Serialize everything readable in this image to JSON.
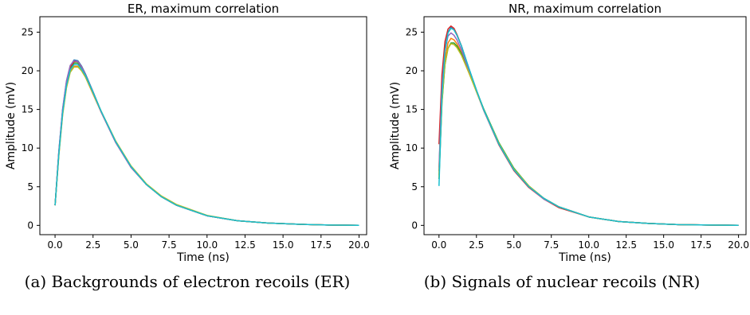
{
  "chart_data": [
    {
      "type": "line",
      "title": "ER, maximum correlation",
      "xlabel": "Time (ns)",
      "ylabel": "Amplitude (mV)",
      "xlim": [
        -1.0,
        20.5
      ],
      "ylim": [
        -1.2,
        27.0
      ],
      "xticks": [
        "0.0",
        "2.5",
        "5.0",
        "7.5",
        "10.0",
        "12.5",
        "15.0",
        "17.5",
        "20.0"
      ],
      "yticks": [
        "0",
        "5",
        "10",
        "15",
        "20",
        "25"
      ],
      "grid": false,
      "legend": "none",
      "caption": "(a) Backgrounds of electron recoils (ER)",
      "series": [
        {
          "color": "#1f77b4",
          "x": [
            0,
            0.25,
            0.5,
            0.75,
            1,
            1.25,
            1.5,
            1.75,
            2,
            2.5,
            3,
            4,
            5,
            6,
            7,
            8,
            10,
            12,
            14,
            16,
            18,
            20
          ],
          "y": [
            2.6,
            9.5,
            15.0,
            18.6,
            20.6,
            21.4,
            21.3,
            20.6,
            19.6,
            17.3,
            14.9,
            10.8,
            7.6,
            5.3,
            3.7,
            2.6,
            1.25,
            0.6,
            0.3,
            0.15,
            0.05,
            0.0
          ]
        },
        {
          "color": "#ff7f0e",
          "x": [
            0,
            0.25,
            0.5,
            0.75,
            1,
            1.25,
            1.5,
            1.75,
            2,
            2.5,
            3,
            4,
            5,
            6,
            7,
            8,
            10,
            12,
            14,
            16,
            18,
            20
          ],
          "y": [
            2.6,
            9.1,
            14.4,
            17.9,
            19.9,
            20.6,
            20.6,
            20.0,
            19.2,
            17.0,
            14.8,
            10.8,
            7.6,
            5.3,
            3.7,
            2.6,
            1.25,
            0.6,
            0.3,
            0.15,
            0.05,
            0.0
          ]
        },
        {
          "color": "#2ca02c",
          "x": [
            0,
            0.25,
            0.5,
            0.75,
            1,
            1.25,
            1.5,
            1.75,
            2,
            2.5,
            3,
            4,
            5,
            6,
            7,
            8,
            10,
            12,
            14,
            16,
            18,
            20
          ],
          "y": [
            2.6,
            9.3,
            14.8,
            18.3,
            20.3,
            21.0,
            21.0,
            20.4,
            19.5,
            17.2,
            14.9,
            10.8,
            7.6,
            5.3,
            3.7,
            2.6,
            1.25,
            0.6,
            0.3,
            0.15,
            0.05,
            0.0
          ]
        },
        {
          "color": "#d62728",
          "x": [
            0,
            0.25,
            0.5,
            0.75,
            1,
            1.25,
            1.5,
            1.75,
            2,
            2.5,
            3,
            4,
            5,
            6,
            7,
            8,
            10,
            12,
            14,
            16,
            18,
            20
          ],
          "y": [
            2.6,
            9.4,
            14.9,
            18.5,
            20.5,
            21.2,
            21.2,
            20.5,
            19.5,
            17.2,
            14.8,
            10.7,
            7.5,
            5.3,
            3.7,
            2.6,
            1.25,
            0.6,
            0.3,
            0.15,
            0.05,
            0.0
          ]
        },
        {
          "color": "#9467bd",
          "x": [
            0,
            0.25,
            0.5,
            0.75,
            1,
            1.25,
            1.5,
            1.75,
            2,
            2.5,
            3,
            4,
            5,
            6,
            7,
            8,
            10,
            12,
            14,
            16,
            18,
            20
          ],
          "y": [
            2.6,
            9.6,
            15.1,
            18.7,
            20.7,
            21.3,
            21.2,
            20.5,
            19.5,
            17.2,
            14.8,
            10.7,
            7.5,
            5.3,
            3.7,
            2.6,
            1.25,
            0.6,
            0.3,
            0.15,
            0.05,
            0.0
          ]
        },
        {
          "color": "#bcbd22",
          "x": [
            0,
            0.25,
            0.5,
            0.75,
            1,
            1.25,
            1.5,
            1.75,
            2,
            2.5,
            3,
            4,
            5,
            6,
            7,
            8,
            10,
            12,
            14,
            16,
            18,
            20
          ],
          "y": [
            2.6,
            9.0,
            14.3,
            17.8,
            19.8,
            20.5,
            20.5,
            20.0,
            19.2,
            17.1,
            14.9,
            10.9,
            7.7,
            5.4,
            3.8,
            2.7,
            1.3,
            0.6,
            0.3,
            0.15,
            0.05,
            0.0
          ]
        },
        {
          "color": "#17becf",
          "x": [
            0,
            0.25,
            0.5,
            0.75,
            1,
            1.25,
            1.5,
            1.75,
            2,
            2.5,
            3,
            4,
            5,
            6,
            7,
            8,
            10,
            12,
            14,
            16,
            18,
            20
          ],
          "y": [
            2.6,
            9.2,
            14.6,
            18.1,
            20.1,
            20.8,
            20.8,
            20.2,
            19.4,
            17.2,
            14.9,
            10.8,
            7.6,
            5.3,
            3.7,
            2.6,
            1.25,
            0.6,
            0.3,
            0.15,
            0.05,
            0.0
          ]
        }
      ]
    },
    {
      "type": "line",
      "title": "NR, maximum correlation",
      "xlabel": "Time (ns)",
      "ylabel": "Amplitude (mV)",
      "xlim": [
        -1.0,
        20.5
      ],
      "ylim": [
        -1.2,
        27.0
      ],
      "xticks": [
        "0.0",
        "2.5",
        "5.0",
        "7.5",
        "10.0",
        "12.5",
        "15.0",
        "17.5",
        "20.0"
      ],
      "yticks": [
        "0",
        "5",
        "10",
        "15",
        "20",
        "25"
      ],
      "grid": false,
      "legend": "none",
      "caption": "(b) Signals of nuclear recoils (NR)",
      "series": [
        {
          "color": "#1f77b4",
          "x": [
            0,
            0.2,
            0.4,
            0.6,
            0.8,
            1,
            1.2,
            1.5,
            2,
            2.5,
            3,
            4,
            5,
            6,
            7,
            8,
            10,
            12,
            14,
            16,
            18,
            20
          ],
          "y": [
            7.0,
            17.5,
            22.8,
            25.0,
            25.6,
            25.3,
            24.6,
            23.2,
            20.3,
            17.5,
            14.9,
            10.5,
            7.2,
            5.0,
            3.5,
            2.4,
            1.1,
            0.5,
            0.25,
            0.1,
            0.05,
            0.0
          ]
        },
        {
          "color": "#ff7f0e",
          "x": [
            0,
            0.2,
            0.4,
            0.6,
            0.8,
            1,
            1.2,
            1.5,
            2,
            2.5,
            3,
            4,
            5,
            6,
            7,
            8,
            10,
            12,
            14,
            16,
            18,
            20
          ],
          "y": [
            6.5,
            16.5,
            21.5,
            23.6,
            24.2,
            24.0,
            23.5,
            22.4,
            19.8,
            17.3,
            14.9,
            10.6,
            7.3,
            5.1,
            3.5,
            2.4,
            1.1,
            0.5,
            0.25,
            0.1,
            0.05,
            0.0
          ]
        },
        {
          "color": "#2ca02c",
          "x": [
            0,
            0.2,
            0.4,
            0.6,
            0.8,
            1,
            1.2,
            1.5,
            2,
            2.5,
            3,
            4,
            5,
            6,
            7,
            8,
            10,
            12,
            14,
            16,
            18,
            20
          ],
          "y": [
            6.0,
            15.8,
            20.8,
            22.9,
            23.6,
            23.6,
            23.2,
            22.2,
            19.8,
            17.4,
            15.0,
            10.7,
            7.4,
            5.1,
            3.5,
            2.4,
            1.1,
            0.5,
            0.25,
            0.1,
            0.05,
            0.0
          ]
        },
        {
          "color": "#d62728",
          "x": [
            0,
            0.2,
            0.4,
            0.6,
            0.8,
            1,
            1.2,
            1.5,
            2,
            2.5,
            3,
            4,
            5,
            6,
            7,
            8,
            10,
            12,
            14,
            16,
            18,
            20
          ],
          "y": [
            10.5,
            19.5,
            23.8,
            25.4,
            25.8,
            25.5,
            24.7,
            23.2,
            20.2,
            17.4,
            14.8,
            10.4,
            7.1,
            4.9,
            3.4,
            2.3,
            1.1,
            0.5,
            0.25,
            0.1,
            0.05,
            0.0
          ]
        },
        {
          "color": "#9467bd",
          "x": [
            0,
            0.2,
            0.4,
            0.6,
            0.8,
            1,
            1.2,
            1.5,
            2,
            2.5,
            3,
            4,
            5,
            6,
            7,
            8,
            10,
            12,
            14,
            16,
            18,
            20
          ],
          "y": [
            7.5,
            17.8,
            22.6,
            24.5,
            24.9,
            24.6,
            24.0,
            22.7,
            20.0,
            17.3,
            14.8,
            10.5,
            7.2,
            5.0,
            3.4,
            2.4,
            1.1,
            0.5,
            0.25,
            0.1,
            0.05,
            0.0
          ]
        },
        {
          "color": "#bcbd22",
          "x": [
            0,
            0.2,
            0.4,
            0.6,
            0.8,
            1,
            1.2,
            1.5,
            2,
            2.5,
            3,
            4,
            5,
            6,
            7,
            8,
            10,
            12,
            14,
            16,
            18,
            20
          ],
          "y": [
            6.2,
            16.0,
            20.9,
            22.9,
            23.5,
            23.4,
            23.0,
            22.0,
            19.7,
            17.3,
            14.9,
            10.6,
            7.3,
            5.1,
            3.5,
            2.4,
            1.1,
            0.5,
            0.25,
            0.1,
            0.05,
            0.0
          ]
        },
        {
          "color": "#17becf",
          "x": [
            0,
            0.2,
            0.4,
            0.6,
            0.8,
            1,
            1.2,
            1.5,
            2,
            2.5,
            3,
            4,
            5,
            6,
            7,
            8,
            10,
            12,
            14,
            16,
            18,
            20
          ],
          "y": [
            5.1,
            16.8,
            22.5,
            24.9,
            25.5,
            25.3,
            24.6,
            23.2,
            20.3,
            17.5,
            14.9,
            10.5,
            7.2,
            5.0,
            3.5,
            2.4,
            1.1,
            0.5,
            0.25,
            0.1,
            0.05,
            0.0
          ]
        }
      ]
    }
  ]
}
